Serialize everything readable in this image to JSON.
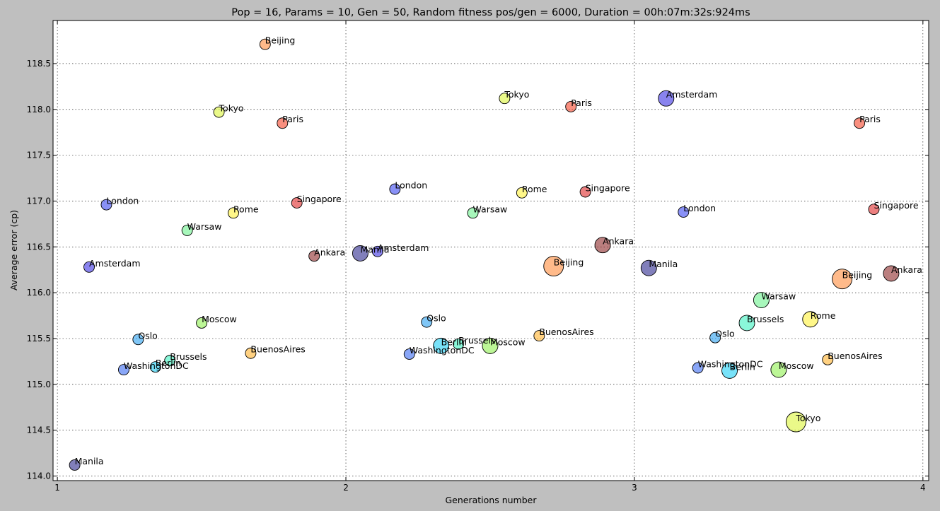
{
  "chart_data": {
    "type": "scatter",
    "title": "Pop = 16, Params = 10, Gen = 50, Random fitness pos/gen = 6000, Duration = 00h:07m:32s:924ms",
    "xlabel": "Generations number",
    "ylabel": "Average error (cp)",
    "xlim": [
      0.985,
      4.02
    ],
    "ylim": [
      113.95,
      118.97
    ],
    "xticks": [
      1,
      2,
      3,
      4
    ],
    "yticks": [
      114.0,
      114.5,
      115.0,
      115.5,
      116.0,
      116.5,
      117.0,
      117.5,
      118.0,
      118.5
    ],
    "ytick_format": "0.0",
    "grid": true,
    "background": "#ffffff",
    "figure_background": "#bfbfbf",
    "colors": {
      "Amsterdam": "#3a30e2",
      "Ankara": "#8e2a2a",
      "Beijing": "#ff8c3c",
      "Berlin": "#1ecef5",
      "Brussels": "#3cf2c0",
      "BuenosAires": "#ffb32d",
      "London": "#3a48f2",
      "Manila": "#2d2a8e",
      "Moscow": "#90f050",
      "Oslo": "#29a0f0",
      "Paris": "#f5442a",
      "Rome": "#fff23a",
      "Singapore": "#e02a2a",
      "Tokyo": "#dcf53a",
      "Warsaw": "#6cf28e",
      "WashingtonDC": "#3a6af2"
    },
    "points": [
      {
        "name": "Beijing",
        "x": 1.72,
        "y": 118.71,
        "size": 1
      },
      {
        "name": "Tokyo",
        "x": 1.56,
        "y": 117.97,
        "size": 1
      },
      {
        "name": "Paris",
        "x": 1.78,
        "y": 117.85,
        "size": 1
      },
      {
        "name": "London",
        "x": 1.17,
        "y": 116.96,
        "size": 1
      },
      {
        "name": "Rome",
        "x": 1.61,
        "y": 116.87,
        "size": 1
      },
      {
        "name": "Singapore",
        "x": 1.83,
        "y": 116.98,
        "size": 1
      },
      {
        "name": "Warsaw",
        "x": 1.45,
        "y": 116.68,
        "size": 1
      },
      {
        "name": "Ankara",
        "x": 1.89,
        "y": 116.4,
        "size": 1
      },
      {
        "name": "Amsterdam",
        "x": 1.11,
        "y": 116.28,
        "size": 1
      },
      {
        "name": "Moscow",
        "x": 1.5,
        "y": 115.67,
        "size": 1
      },
      {
        "name": "Oslo",
        "x": 1.28,
        "y": 115.49,
        "size": 1
      },
      {
        "name": "BuenosAires",
        "x": 1.67,
        "y": 115.34,
        "size": 1
      },
      {
        "name": "Brussels",
        "x": 1.39,
        "y": 115.26,
        "size": 1
      },
      {
        "name": "Berlin",
        "x": 1.34,
        "y": 115.19,
        "size": 1
      },
      {
        "name": "WashingtonDC",
        "x": 1.23,
        "y": 115.16,
        "size": 1
      },
      {
        "name": "Manila",
        "x": 1.06,
        "y": 114.12,
        "size": 1
      },
      {
        "name": "Tokyo",
        "x": 2.55,
        "y": 118.12,
        "size": 1
      },
      {
        "name": "Paris",
        "x": 2.78,
        "y": 118.03,
        "size": 1
      },
      {
        "name": "London",
        "x": 2.17,
        "y": 117.13,
        "size": 1
      },
      {
        "name": "Rome",
        "x": 2.61,
        "y": 117.09,
        "size": 1
      },
      {
        "name": "Singapore",
        "x": 2.83,
        "y": 117.1,
        "size": 1
      },
      {
        "name": "Warsaw",
        "x": 2.44,
        "y": 116.87,
        "size": 1
      },
      {
        "name": "Manila",
        "x": 2.05,
        "y": 116.43,
        "size": 2
      },
      {
        "name": "Amsterdam",
        "x": 2.11,
        "y": 116.45,
        "size": 1
      },
      {
        "name": "Ankara",
        "x": 2.89,
        "y": 116.52,
        "size": 2
      },
      {
        "name": "Beijing",
        "x": 2.72,
        "y": 116.29,
        "size": 3
      },
      {
        "name": "Oslo",
        "x": 2.28,
        "y": 115.68,
        "size": 1
      },
      {
        "name": "BuenosAires",
        "x": 2.67,
        "y": 115.53,
        "size": 1
      },
      {
        "name": "Berlin",
        "x": 2.33,
        "y": 115.42,
        "size": 2
      },
      {
        "name": "Brussels",
        "x": 2.39,
        "y": 115.44,
        "size": 1
      },
      {
        "name": "Moscow",
        "x": 2.5,
        "y": 115.42,
        "size": 2
      },
      {
        "name": "WashingtonDC",
        "x": 2.22,
        "y": 115.33,
        "size": 1
      },
      {
        "name": "Amsterdam",
        "x": 3.11,
        "y": 118.12,
        "size": 2
      },
      {
        "name": "Paris",
        "x": 3.78,
        "y": 117.85,
        "size": 1
      },
      {
        "name": "London",
        "x": 3.17,
        "y": 116.88,
        "size": 1
      },
      {
        "name": "Singapore",
        "x": 3.83,
        "y": 116.91,
        "size": 1
      },
      {
        "name": "Ankara",
        "x": 3.89,
        "y": 116.21,
        "size": 2
      },
      {
        "name": "Manila",
        "x": 3.05,
        "y": 116.27,
        "size": 2
      },
      {
        "name": "Beijing",
        "x": 3.72,
        "y": 116.15,
        "size": 3
      },
      {
        "name": "Warsaw",
        "x": 3.44,
        "y": 115.92,
        "size": 2
      },
      {
        "name": "Rome",
        "x": 3.61,
        "y": 115.71,
        "size": 2
      },
      {
        "name": "Brussels",
        "x": 3.39,
        "y": 115.67,
        "size": 2
      },
      {
        "name": "Oslo",
        "x": 3.28,
        "y": 115.51,
        "size": 1
      },
      {
        "name": "BuenosAires",
        "x": 3.67,
        "y": 115.27,
        "size": 1
      },
      {
        "name": "WashingtonDC",
        "x": 3.22,
        "y": 115.18,
        "size": 1
      },
      {
        "name": "Berlin",
        "x": 3.33,
        "y": 115.15,
        "size": 2
      },
      {
        "name": "Moscow",
        "x": 3.5,
        "y": 115.16,
        "size": 2
      },
      {
        "name": "Tokyo",
        "x": 3.56,
        "y": 114.59,
        "size": 3
      }
    ]
  }
}
